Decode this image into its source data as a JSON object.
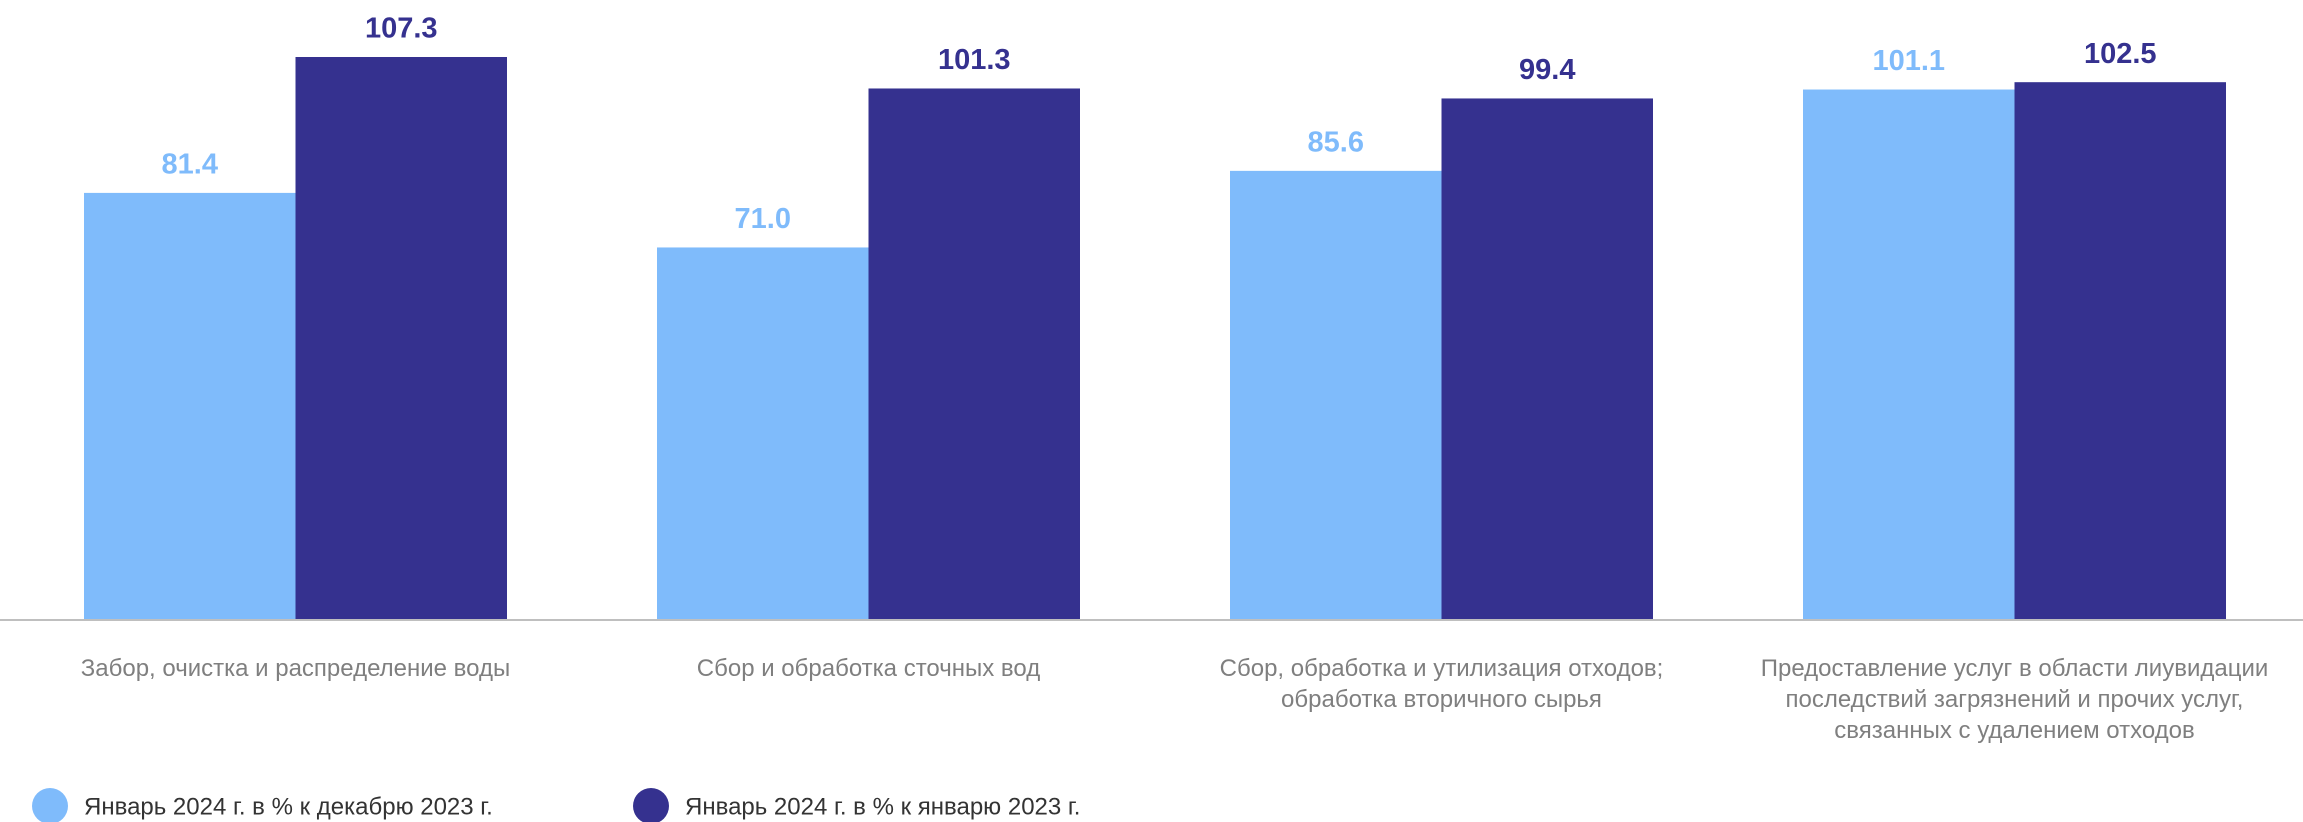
{
  "chart_data": {
    "type": "bar",
    "categories": [
      [
        "Забор, очистка и распределение воды"
      ],
      [
        "Сбор и обработка сточных вод"
      ],
      [
        "Сбор, обработка и утилизация отходов;",
        "обработка вторичного сырья"
      ],
      [
        "Предоставление услуг в области лиувидации",
        "последствий загрязнений и прочих услуг,",
        "связанных с удалением отходов"
      ]
    ],
    "series": [
      {
        "name": "Январь 2024 г. в % к декабрю 2023 г.",
        "color": "#7fbbfb",
        "values": [
          81.4,
          71.0,
          85.6,
          101.1
        ],
        "value_labels": [
          "81.4",
          "71.0",
          "85.6",
          "101.1"
        ]
      },
      {
        "name": "Январь 2024 г. в % к январю 2023 г.",
        "color": "#35318f",
        "values": [
          107.3,
          101.3,
          99.4,
          102.5
        ],
        "value_labels": [
          "107.3",
          "101.3",
          "99.4",
          "102.5"
        ]
      }
    ],
    "legend": "bottom-left"
  }
}
